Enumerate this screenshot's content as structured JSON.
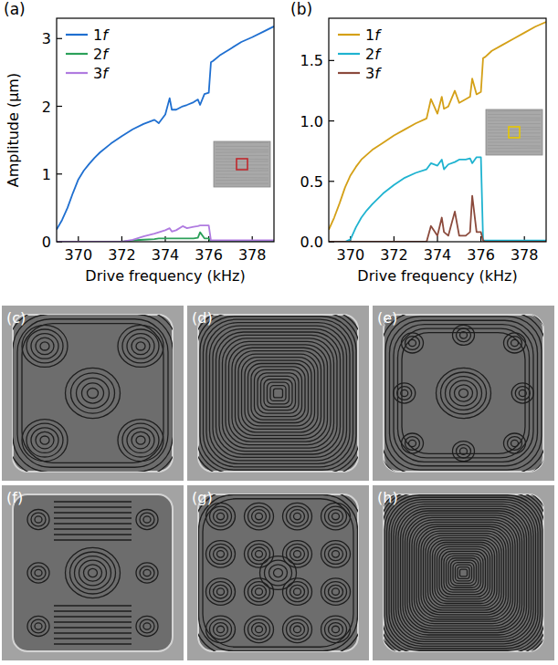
{
  "chart_data": [
    {
      "type": "line",
      "title": "(a)",
      "xlabel": "Drive frequency (kHz)",
      "ylabel": "Amplitude (μm)",
      "x": [
        369,
        369.25,
        369.5,
        369.75,
        370,
        370.25,
        370.5,
        370.75,
        371,
        371.5,
        372,
        372.5,
        373,
        373.5,
        373.7,
        374,
        374.2,
        374.3,
        374.5,
        374.8,
        375,
        375.3,
        375.5,
        375.6,
        375.8,
        376,
        376.1,
        376.2,
        376.5,
        377,
        377.5,
        378,
        378.5,
        379
      ],
      "series": [
        {
          "name": "1f",
          "color": "#1f6fd0",
          "values": [
            0.18,
            0.32,
            0.5,
            0.72,
            0.92,
            1.05,
            1.15,
            1.24,
            1.32,
            1.45,
            1.56,
            1.66,
            1.74,
            1.8,
            1.75,
            1.88,
            2.12,
            1.95,
            1.95,
            2.0,
            2.02,
            2.06,
            2.1,
            2.02,
            2.18,
            2.2,
            2.65,
            2.67,
            2.75,
            2.85,
            2.95,
            3.02,
            3.1,
            3.18
          ]
        },
        {
          "name": "2f",
          "color": "#2ca05a",
          "values": [
            0,
            0,
            0,
            0,
            0,
            0,
            0,
            0,
            0,
            0,
            0,
            0.02,
            0.03,
            0.04,
            0.05,
            0.05,
            0.05,
            0.05,
            0.05,
            0.05,
            0.05,
            0.05,
            0.06,
            0.14,
            0.05,
            0.05,
            0,
            0,
            0,
            0,
            0,
            0,
            0,
            0
          ]
        },
        {
          "name": "3f",
          "color": "#b07be0",
          "values": [
            0,
            0,
            0,
            0,
            0,
            0,
            0,
            0,
            0,
            0,
            0,
            0.03,
            0.08,
            0.12,
            0.14,
            0.17,
            0.2,
            0.15,
            0.17,
            0.23,
            0.2,
            0.22,
            0.23,
            0.24,
            0.24,
            0.24,
            0.02,
            0.02,
            0.02,
            0.02,
            0.02,
            0.02,
            0.02,
            0.02
          ]
        }
      ],
      "xlim": [
        369,
        379
      ],
      "xticks": [
        370,
        372,
        374,
        376,
        378
      ],
      "ylim": [
        0,
        3.3
      ],
      "yticks": [
        0,
        1,
        2,
        3
      ],
      "legend": "upper left"
    },
    {
      "type": "line",
      "title": "(b)",
      "xlabel": "Drive frequency (kHz)",
      "x": [
        369,
        369.25,
        369.5,
        369.75,
        370,
        370.25,
        370.5,
        370.75,
        371,
        371.5,
        372,
        372.5,
        373,
        373.5,
        373.7,
        374,
        374.2,
        374.3,
        374.5,
        374.8,
        375,
        375.3,
        375.5,
        375.6,
        375.8,
        376,
        376.1,
        376.2,
        376.5,
        377,
        377.5,
        378,
        378.5,
        379
      ],
      "series": [
        {
          "name": "1f",
          "color": "#d4a017",
          "values": [
            0.1,
            0.2,
            0.32,
            0.45,
            0.55,
            0.62,
            0.68,
            0.72,
            0.76,
            0.82,
            0.88,
            0.93,
            0.98,
            1.02,
            1.18,
            1.06,
            1.2,
            1.1,
            1.12,
            1.25,
            1.15,
            1.18,
            1.2,
            1.35,
            1.22,
            1.24,
            1.52,
            1.53,
            1.58,
            1.63,
            1.68,
            1.73,
            1.78,
            1.82
          ]
        },
        {
          "name": "2f",
          "color": "#1fb3d0",
          "values": [
            0,
            0,
            0,
            0,
            0.02,
            0.12,
            0.2,
            0.26,
            0.31,
            0.4,
            0.47,
            0.53,
            0.57,
            0.6,
            0.65,
            0.63,
            0.68,
            0.6,
            0.64,
            0.66,
            0.68,
            0.68,
            0.69,
            0.65,
            0.7,
            0.7,
            0.01,
            0.01,
            0.01,
            0.01,
            0.01,
            0.01,
            0.01,
            0.01
          ]
        },
        {
          "name": "3f",
          "color": "#8b4a3c",
          "values": [
            0,
            0,
            0,
            0,
            0,
            0,
            0,
            0,
            0,
            0,
            0,
            0,
            0,
            0,
            0.13,
            0.05,
            0.2,
            0.08,
            0.05,
            0.25,
            0.05,
            0.05,
            0.08,
            0.38,
            0.08,
            0.08,
            0.01,
            0,
            0,
            0,
            0,
            0,
            0,
            0
          ]
        }
      ],
      "xlim": [
        369,
        379
      ],
      "xticks": [
        370,
        372,
        374,
        376,
        378
      ],
      "ylim": [
        0,
        1.85
      ],
      "yticks": [
        {
          "value": 0,
          "label": "0.0"
        },
        {
          "value": 0.5,
          "label": "0.5"
        },
        {
          "value": 1,
          "label": "1.0"
        },
        {
          "value": 1.5,
          "label": "1.5"
        }
      ],
      "legend": "upper left"
    }
  ],
  "images": [
    {
      "label": "(c)"
    },
    {
      "label": "(d)"
    },
    {
      "label": "(e)"
    },
    {
      "label": "(f)"
    },
    {
      "label": "(g)"
    },
    {
      "label": "(h)"
    }
  ]
}
